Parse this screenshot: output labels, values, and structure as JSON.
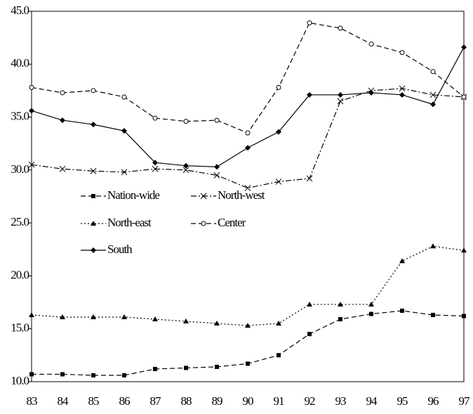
{
  "chart_data": {
    "type": "line",
    "categories": [
      "83",
      "84",
      "85",
      "86",
      "87",
      "88",
      "89",
      "90",
      "91",
      "92",
      "93",
      "94",
      "95",
      "96",
      "97"
    ],
    "ylim": [
      10,
      45
    ],
    "yticks": [
      {
        "value": 10,
        "label": "10.0"
      },
      {
        "value": 15,
        "label": "15.0"
      },
      {
        "value": 20,
        "label": "20.0"
      },
      {
        "value": 25,
        "label": "25.0"
      },
      {
        "value": 30,
        "label": "30.0"
      },
      {
        "value": 35,
        "label": "35.0"
      },
      {
        "value": 40,
        "label": "40.0"
      },
      {
        "value": 45,
        "label": "45.0"
      }
    ],
    "grid": false,
    "series": [
      {
        "name": "Nation-wide",
        "color": "#000000",
        "dash": "dashed",
        "marker": "square",
        "values": [
          10.7,
          10.7,
          10.6,
          10.6,
          11.2,
          11.3,
          11.4,
          11.7,
          12.5,
          14.5,
          15.9,
          16.4,
          16.7,
          16.3,
          16.2
        ]
      },
      {
        "name": "North-west",
        "color": "#000000",
        "dash": "dashdot",
        "marker": "x",
        "values": [
          30.5,
          30.1,
          29.9,
          29.8,
          30.1,
          30.0,
          29.5,
          28.3,
          28.9,
          29.2,
          36.5,
          37.5,
          37.7,
          37.1,
          36.9
        ]
      },
      {
        "name": "North-east",
        "color": "#000000",
        "dash": "dotted",
        "marker": "triangle",
        "values": [
          16.3,
          16.1,
          16.1,
          16.1,
          15.9,
          15.7,
          15.5,
          15.3,
          15.5,
          17.3,
          17.3,
          17.3,
          21.4,
          22.8,
          22.4
        ]
      },
      {
        "name": "Center",
        "color": "#000000",
        "dash": "dashed",
        "marker": "circle",
        "values": [
          37.8,
          37.3,
          37.5,
          36.9,
          34.9,
          34.6,
          34.7,
          33.5,
          37.8,
          43.9,
          43.4,
          41.9,
          41.1,
          39.3,
          36.9
        ]
      },
      {
        "name": "South",
        "color": "#000000",
        "dash": "solid",
        "marker": "diamond",
        "values": [
          35.6,
          34.7,
          34.3,
          33.7,
          30.7,
          30.4,
          30.3,
          32.1,
          33.6,
          37.1,
          37.1,
          37.3,
          37.1,
          36.2,
          41.6
        ]
      }
    ]
  }
}
